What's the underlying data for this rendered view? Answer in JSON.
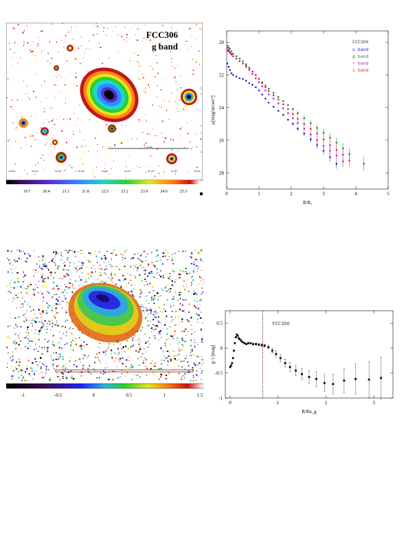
{
  "image_g": {
    "galaxy": "FCC306",
    "band": "g band",
    "scale_label": "1 arcmin",
    "ra_ticks": [
      "56.460",
      "56.455",
      "56.450",
      "56.445",
      "56.440",
      "56.435",
      "56.430",
      "56.425",
      "56.420"
    ],
    "colorbar_ticks": [
      "19.7",
      "20.4",
      "21.1",
      "21.8",
      "22.5",
      "23.2",
      "23.9",
      "24.6",
      "25.3"
    ]
  },
  "image_color": {
    "colorbar_ticks": [
      "-1",
      "-0.5",
      "0",
      "0.5",
      "1",
      "1.5"
    ]
  },
  "chart_data": [
    {
      "type": "scatter",
      "title": "",
      "xlabel": "R/Rₑ",
      "ylabel": "μ[mag/arcsec²]",
      "xlim": [
        0,
        5
      ],
      "ylim": [
        29,
        19.3
      ],
      "y_inverted": true,
      "xticks": [
        "0",
        "1",
        "2",
        "3",
        "4",
        "5"
      ],
      "yticks": [
        "20",
        "22",
        "24",
        "26",
        "28"
      ],
      "legend_title": "FCC306",
      "legend_position": "top-right",
      "series": [
        {
          "name": "u band",
          "color": "#1b1bd6",
          "x": [
            0.02,
            0.06,
            0.1,
            0.15,
            0.2,
            0.3,
            0.4,
            0.5,
            0.6,
            0.7,
            0.8,
            0.9,
            1.0,
            1.1,
            1.2,
            1.3,
            1.45,
            1.6,
            1.75,
            1.9,
            2.05,
            2.2,
            2.4,
            2.6,
            2.8,
            3.0,
            3.2,
            3.4
          ],
          "y": [
            21.3,
            21.5,
            21.7,
            21.9,
            22.0,
            22.1,
            22.2,
            22.25,
            22.35,
            22.5,
            22.6,
            22.75,
            22.95,
            23.2,
            23.45,
            23.7,
            23.95,
            24.2,
            24.45,
            24.75,
            25.0,
            25.3,
            25.6,
            25.95,
            26.3,
            26.65,
            27.05,
            27.45
          ]
        },
        {
          "name": "g band",
          "color": "#1e8a1e",
          "x": [
            0.02,
            0.06,
            0.1,
            0.15,
            0.2,
            0.3,
            0.4,
            0.5,
            0.6,
            0.7,
            0.8,
            0.9,
            1.0,
            1.1,
            1.2,
            1.3,
            1.45,
            1.6,
            1.75,
            1.9,
            2.05,
            2.2,
            2.4,
            2.6,
            2.8,
            3.0,
            3.2,
            3.4,
            3.6,
            3.8,
            4.25
          ],
          "y": [
            20.2,
            20.3,
            20.4,
            20.55,
            20.7,
            20.85,
            21.0,
            21.15,
            21.35,
            21.55,
            21.8,
            22.0,
            22.25,
            22.45,
            22.65,
            22.85,
            23.1,
            23.35,
            23.6,
            23.85,
            24.1,
            24.35,
            24.65,
            24.95,
            25.25,
            25.55,
            25.85,
            26.15,
            26.5,
            26.85,
            27.45
          ]
        },
        {
          "name": "r band",
          "color": "#c21ec2",
          "x": [
            0.02,
            0.06,
            0.1,
            0.15,
            0.2,
            0.3,
            0.4,
            0.5,
            0.6,
            0.7,
            0.8,
            0.9,
            1.0,
            1.1,
            1.2,
            1.3,
            1.45,
            1.6,
            1.75,
            1.9,
            2.05,
            2.2,
            2.4,
            2.6,
            2.8,
            3.0,
            3.2,
            3.4,
            3.6
          ],
          "y": [
            20.35,
            20.45,
            20.6,
            20.7,
            20.85,
            21.0,
            21.15,
            21.3,
            21.5,
            21.7,
            21.95,
            22.2,
            22.45,
            22.7,
            22.95,
            23.2,
            23.45,
            23.75,
            24.05,
            24.35,
            24.65,
            24.95,
            25.3,
            25.65,
            26.0,
            26.35,
            26.65,
            26.95,
            27.3
          ]
        },
        {
          "name": "i band",
          "color": "#d81e4c",
          "x": [
            0.02,
            0.06,
            0.1,
            0.15,
            0.2,
            0.3,
            0.4,
            0.5,
            0.6,
            0.7,
            0.8,
            0.9,
            1.0,
            1.1,
            1.2,
            1.3,
            1.45,
            1.6,
            1.75,
            1.9,
            2.05,
            2.2,
            2.4,
            2.6,
            2.8,
            3.0,
            3.2,
            3.4,
            3.6,
            3.8
          ],
          "y": [
            20.5,
            20.55,
            20.65,
            20.75,
            20.85,
            21.0,
            21.15,
            21.3,
            21.45,
            21.6,
            21.8,
            22.0,
            22.25,
            22.5,
            22.75,
            23.0,
            23.25,
            23.5,
            23.8,
            24.1,
            24.4,
            24.7,
            25.0,
            25.3,
            25.6,
            25.95,
            26.3,
            26.6,
            26.9,
            27.25
          ]
        }
      ]
    },
    {
      "type": "scatter",
      "title": "",
      "xlabel": "R/Re_g",
      "ylabel": "g−i [mag]",
      "xlim": [
        -0.1,
        3.4
      ],
      "ylim": [
        -1,
        0.75
      ],
      "xticks": [
        "0",
        "1",
        "2",
        "3"
      ],
      "yticks": [
        "0.5",
        "0",
        "-0.5",
        "-1"
      ],
      "legend_title": "FCC306",
      "vline_x": 0.68,
      "series": [
        {
          "name": "",
          "color": "#000000",
          "x": [
            0.0,
            0.02,
            0.04,
            0.06,
            0.08,
            0.1,
            0.12,
            0.14,
            0.16,
            0.18,
            0.2,
            0.23,
            0.26,
            0.3,
            0.34,
            0.38,
            0.43,
            0.48,
            0.54,
            0.6,
            0.66,
            0.72,
            0.8,
            0.88,
            0.96,
            1.05,
            1.15,
            1.25,
            1.37,
            1.5,
            1.65,
            1.8,
            1.97,
            2.15,
            2.38,
            2.62,
            2.9,
            3.15
          ],
          "y": [
            -0.38,
            -0.35,
            -0.3,
            -0.2,
            -0.05,
            0.1,
            0.22,
            0.27,
            0.25,
            0.2,
            0.18,
            0.15,
            0.12,
            0.1,
            0.08,
            0.1,
            0.1,
            0.08,
            0.08,
            0.07,
            0.06,
            0.05,
            0.02,
            -0.05,
            -0.12,
            -0.2,
            -0.3,
            -0.38,
            -0.45,
            -0.52,
            -0.58,
            -0.62,
            -0.7,
            -0.72,
            -0.65,
            -0.62,
            -0.63,
            -0.6
          ],
          "err": [
            0.01,
            0.01,
            0.01,
            0.01,
            0.01,
            0.01,
            0.01,
            0.01,
            0.01,
            0.01,
            0.01,
            0.01,
            0.01,
            0.01,
            0.01,
            0.01,
            0.01,
            0.02,
            0.02,
            0.02,
            0.03,
            0.03,
            0.04,
            0.05,
            0.06,
            0.07,
            0.08,
            0.09,
            0.1,
            0.11,
            0.13,
            0.15,
            0.17,
            0.2,
            0.24,
            0.3,
            0.36,
            0.42
          ]
        }
      ]
    }
  ]
}
